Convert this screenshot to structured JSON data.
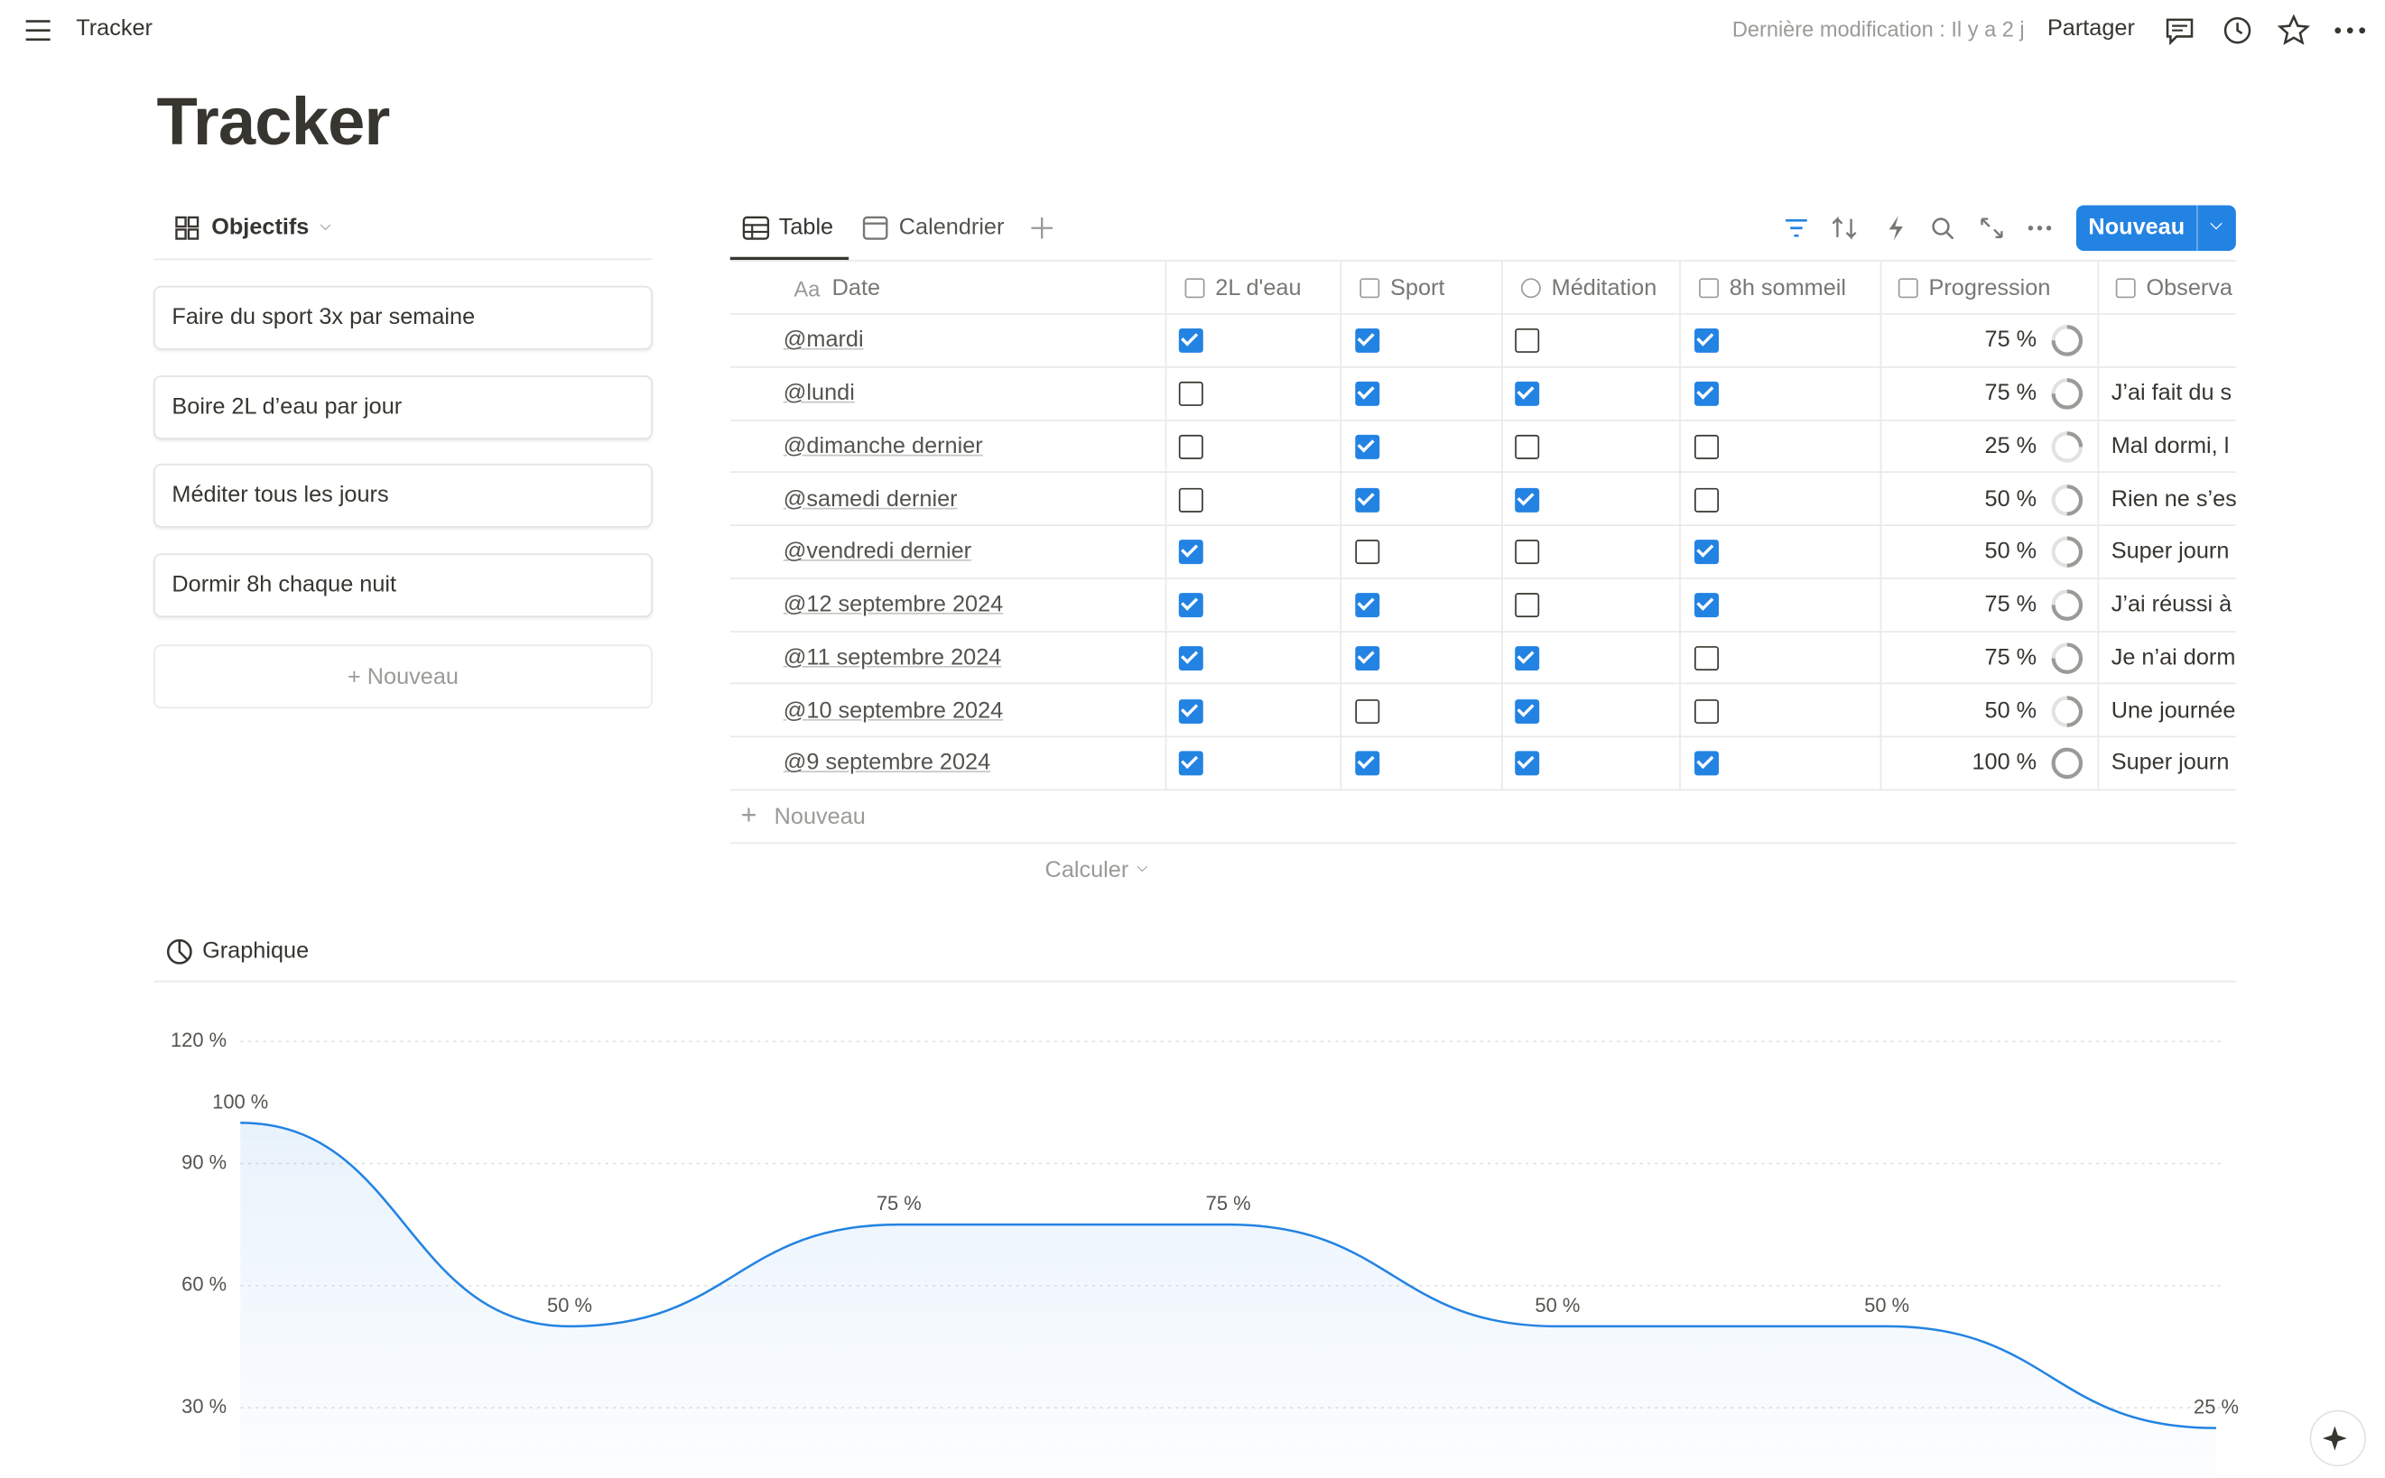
{
  "topbar": {
    "breadcrumb": "Tracker",
    "last_edited": "Dernière modification : Il y a 2 j",
    "share": "Partager"
  },
  "page_title": "Tracker",
  "goals": {
    "view": "Objectifs",
    "items": [
      "Faire du sport 3x par semaine",
      "Boire 2L d’eau par jour",
      "Méditer tous les jours",
      "Dormir 8h chaque nuit"
    ],
    "new": "Nouveau"
  },
  "database": {
    "tabs": [
      "Table",
      "Calendrier"
    ],
    "new_button": "Nouveau",
    "date_icon": "Aa",
    "columns": [
      "Date",
      "2L d'eau",
      "Sport",
      "Méditation",
      "8h sommeil",
      "Progression",
      "Observa"
    ],
    "rows": [
      {
        "date": "@mardi",
        "checks": [
          true,
          true,
          false,
          true
        ],
        "progress": 75,
        "progress_label": "75 %",
        "note": null
      },
      {
        "date": "@lundi",
        "checks": [
          false,
          true,
          true,
          true
        ],
        "progress": 75,
        "progress_label": "75 %",
        "note": "J’ai fait du s"
      },
      {
        "date": "@dimanche dernier",
        "checks": [
          false,
          true,
          false,
          false
        ],
        "progress": 25,
        "progress_label": "25 %",
        "note": "Mal dormi, l"
      },
      {
        "date": "@samedi dernier",
        "checks": [
          false,
          true,
          true,
          false
        ],
        "progress": 50,
        "progress_label": "50 %",
        "note": "Rien ne s’es"
      },
      {
        "date": "@vendredi dernier",
        "checks": [
          true,
          false,
          false,
          true
        ],
        "progress": 50,
        "progress_label": "50 %",
        "note": "Super journ"
      },
      {
        "date": "@12 septembre 2024",
        "checks": [
          true,
          true,
          false,
          true
        ],
        "progress": 75,
        "progress_label": "75 %",
        "note": "J’ai réussi à"
      },
      {
        "date": "@11 septembre 2024",
        "checks": [
          true,
          true,
          true,
          false
        ],
        "progress": 75,
        "progress_label": "75 %",
        "note": "Je n’ai dorm"
      },
      {
        "date": "@10 septembre 2024",
        "checks": [
          true,
          false,
          true,
          false
        ],
        "progress": 50,
        "progress_label": "50 %",
        "note": "Une journée"
      },
      {
        "date": "@9 septembre 2024",
        "checks": [
          true,
          true,
          true,
          true
        ],
        "progress": 100,
        "progress_label": "100 %",
        "note": "Super journ"
      }
    ],
    "add_row": "Nouveau",
    "calculate": "Calculer"
  },
  "chart_data": {
    "type": "area",
    "title": "Graphique",
    "color": "#2383e2",
    "values": [
      100,
      50,
      75,
      75,
      50,
      50,
      25
    ],
    "value_labels": [
      "100 %",
      "50 %",
      "75 %",
      "75 %",
      "50 %",
      "50 %",
      "25 %"
    ],
    "ylim": [
      0,
      120
    ],
    "yticks": [
      {
        "value": 30,
        "label": "30 %"
      },
      {
        "value": 60,
        "label": "60 %"
      },
      {
        "value": 90,
        "label": "90 %"
      },
      {
        "value": 120,
        "label": "120 %"
      }
    ],
    "grid": true
  }
}
